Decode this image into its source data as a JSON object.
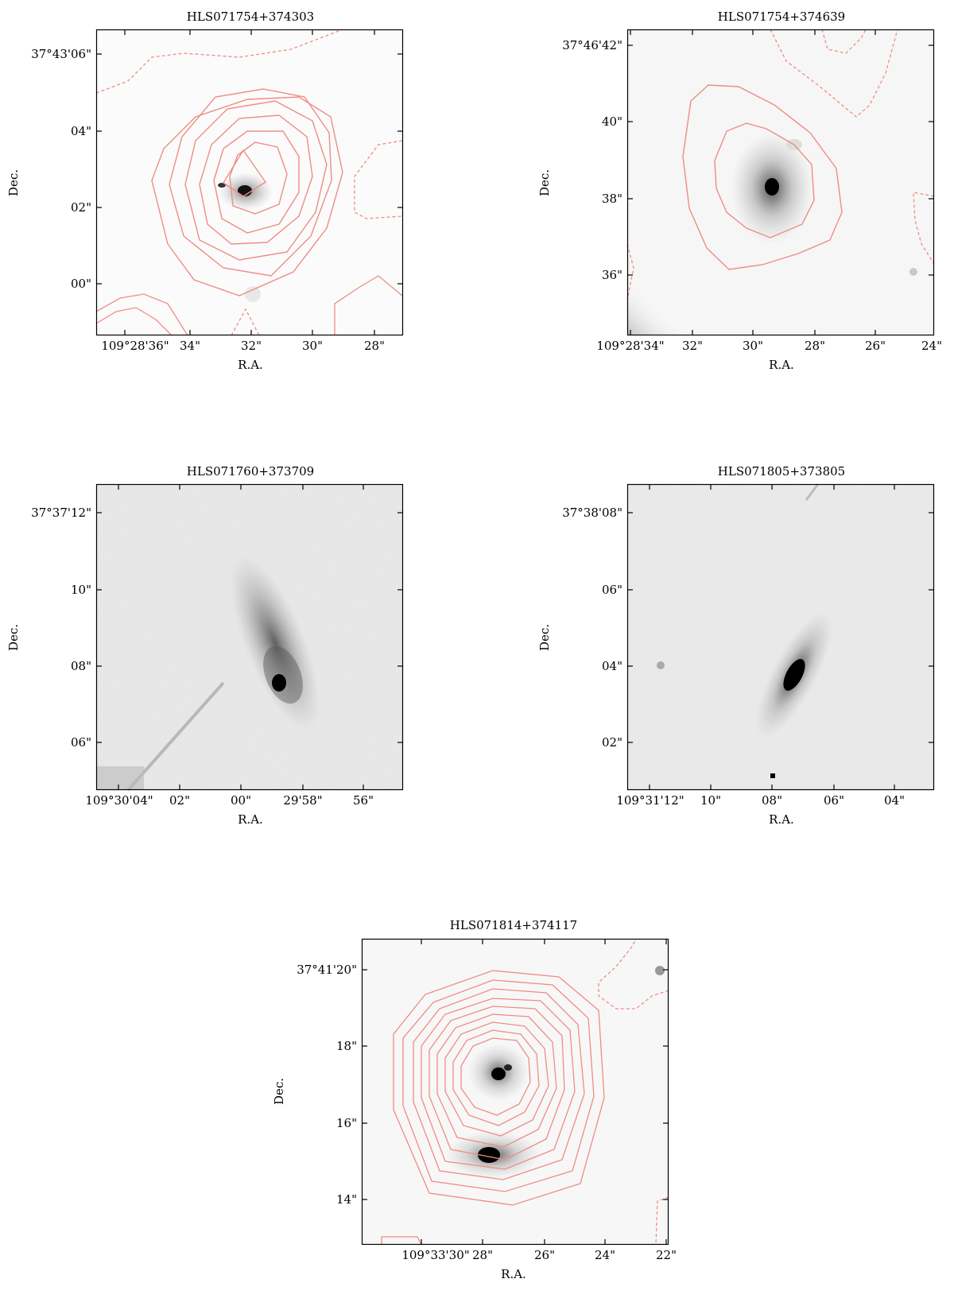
{
  "panels": [
    {
      "title": "HLS071754+374303",
      "xlabel": "R.A.",
      "ylabel": "Dec.",
      "xticks": [
        "109°28'36\"",
        "34\"",
        "32\"",
        "30\"",
        "28\""
      ],
      "yticks": [
        "37°43'06\"",
        "04\"",
        "02\"",
        "00\""
      ],
      "background": "light"
    },
    {
      "title": "HLS071754+374639",
      "xlabel": "R.A.",
      "ylabel": "Dec.",
      "xticks": [
        "109°28'34\"",
        "32\"",
        "30\"",
        "28\"",
        "26\"",
        "24\""
      ],
      "yticks": [
        "37°46'42\"",
        "40\"",
        "38\"",
        "36\""
      ],
      "background": "light"
    },
    {
      "title": "HLS071760+373709",
      "xlabel": "R.A.",
      "ylabel": "Dec.",
      "xticks": [
        "109°30'04\"",
        "02\"",
        "00\"",
        "29'58\"",
        "56\""
      ],
      "yticks": [
        "37°37'12\"",
        "10\"",
        "08\"",
        "06\""
      ],
      "background": "noisy"
    },
    {
      "title": "HLS071805+373805",
      "xlabel": "R.A.",
      "ylabel": "Dec.",
      "xticks": [
        "109°31'12\"",
        "10\"",
        "08\"",
        "06\"",
        "04\""
      ],
      "yticks": [
        "37°38'08\"",
        "06\"",
        "04\"",
        "02\""
      ],
      "background": "noisy"
    },
    {
      "title": "HLS071814+374117",
      "xlabel": "R.A.",
      "ylabel": "Dec.",
      "xticks": [
        "109°33'30\"",
        "28\"",
        "26\"",
        "24\"",
        "22\""
      ],
      "yticks": [
        "37°41'20\"",
        "18\"",
        "16\"",
        "14\""
      ],
      "background": "light"
    }
  ],
  "colors": {
    "contour": "#f08c84",
    "frame": "#000000"
  }
}
